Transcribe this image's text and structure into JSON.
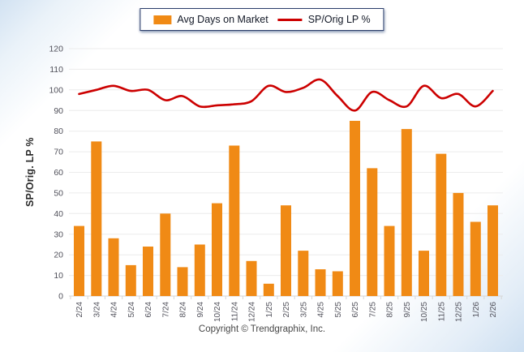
{
  "legend": {
    "bar_label": "Avg Days on Market",
    "line_label": "SP/Orig LP %"
  },
  "y_axis": {
    "title": "SP/Orig. LP %",
    "ticks": [
      0,
      10,
      20,
      30,
      40,
      50,
      60,
      70,
      80,
      90,
      100,
      110,
      120
    ]
  },
  "footer": {
    "copyright": "Copyright © Trendgraphix, Inc."
  },
  "colors": {
    "bar": "#F08A15",
    "line": "#CC0000",
    "grid": "#ECECEC",
    "axis": "#D6D6D6",
    "tick_text": "#50505A",
    "legend_border": "#2C3E6B",
    "background_corner": "#D2E2F2"
  },
  "chart_data": {
    "type": "bar",
    "title": "",
    "xlabel": "",
    "ylabel": "SP/Orig. LP %",
    "ylim": [
      0,
      120
    ],
    "grid": true,
    "legend_position": "top",
    "categories": [
      "2/24",
      "3/24",
      "4/24",
      "5/24",
      "6/24",
      "7/24",
      "8/24",
      "9/24",
      "10/24",
      "11/24",
      "12/24",
      "1/25",
      "2/25",
      "3/25",
      "4/25",
      "5/25",
      "6/25",
      "7/25",
      "8/25",
      "9/25",
      "10/25",
      "11/25",
      "12/25",
      "1/26",
      "2/26"
    ],
    "series": [
      {
        "name": "Avg Days on Market",
        "type": "bar",
        "values": [
          34,
          75,
          28,
          15,
          24,
          40,
          14,
          25,
          45,
          73,
          17,
          6,
          44,
          22,
          13,
          12,
          85,
          62,
          34,
          81,
          22,
          69,
          50,
          36,
          44
        ]
      },
      {
        "name": "SP/Orig LP %",
        "type": "line",
        "values": [
          98,
          100,
          102,
          99.5,
          100,
          95,
          97,
          92,
          92.5,
          93,
          94.5,
          102,
          99,
          101,
          105,
          97,
          90,
          99,
          95,
          92,
          102,
          96,
          98,
          92,
          99.5
        ]
      }
    ]
  }
}
